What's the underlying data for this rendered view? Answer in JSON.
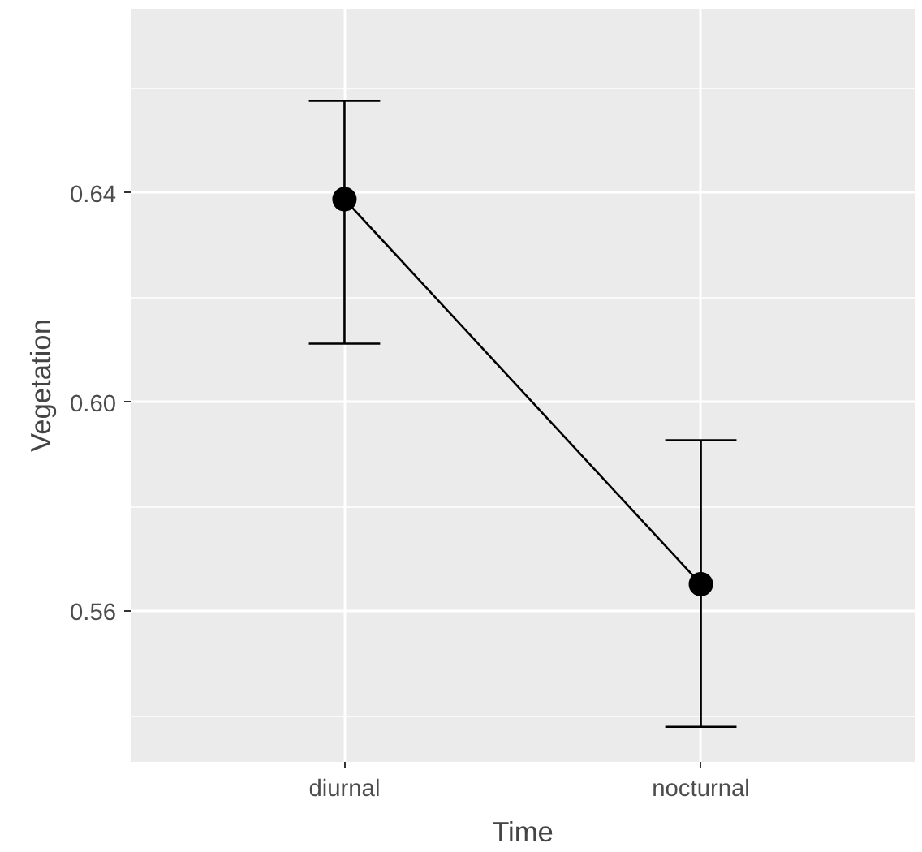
{
  "chart_data": {
    "type": "line",
    "xlabel": "Time",
    "ylabel": "Vegetation",
    "categories": [
      "diurnal",
      "nocturnal"
    ],
    "values": [
      0.6388,
      0.5652
    ],
    "color": "#000000",
    "errors": [
      [
        0.6112,
        0.6576
      ],
      [
        0.5379,
        0.5927
      ]
    ],
    "ylim": [
      0.5312,
      0.6752
    ],
    "yticks": [
      {
        "value": 0.56,
        "label": "0.56"
      },
      {
        "value": 0.6,
        "label": "0.60"
      },
      {
        "value": 0.64,
        "label": "0.64"
      }
    ],
    "grid": true,
    "marker": "circle",
    "line_style": "solid"
  }
}
